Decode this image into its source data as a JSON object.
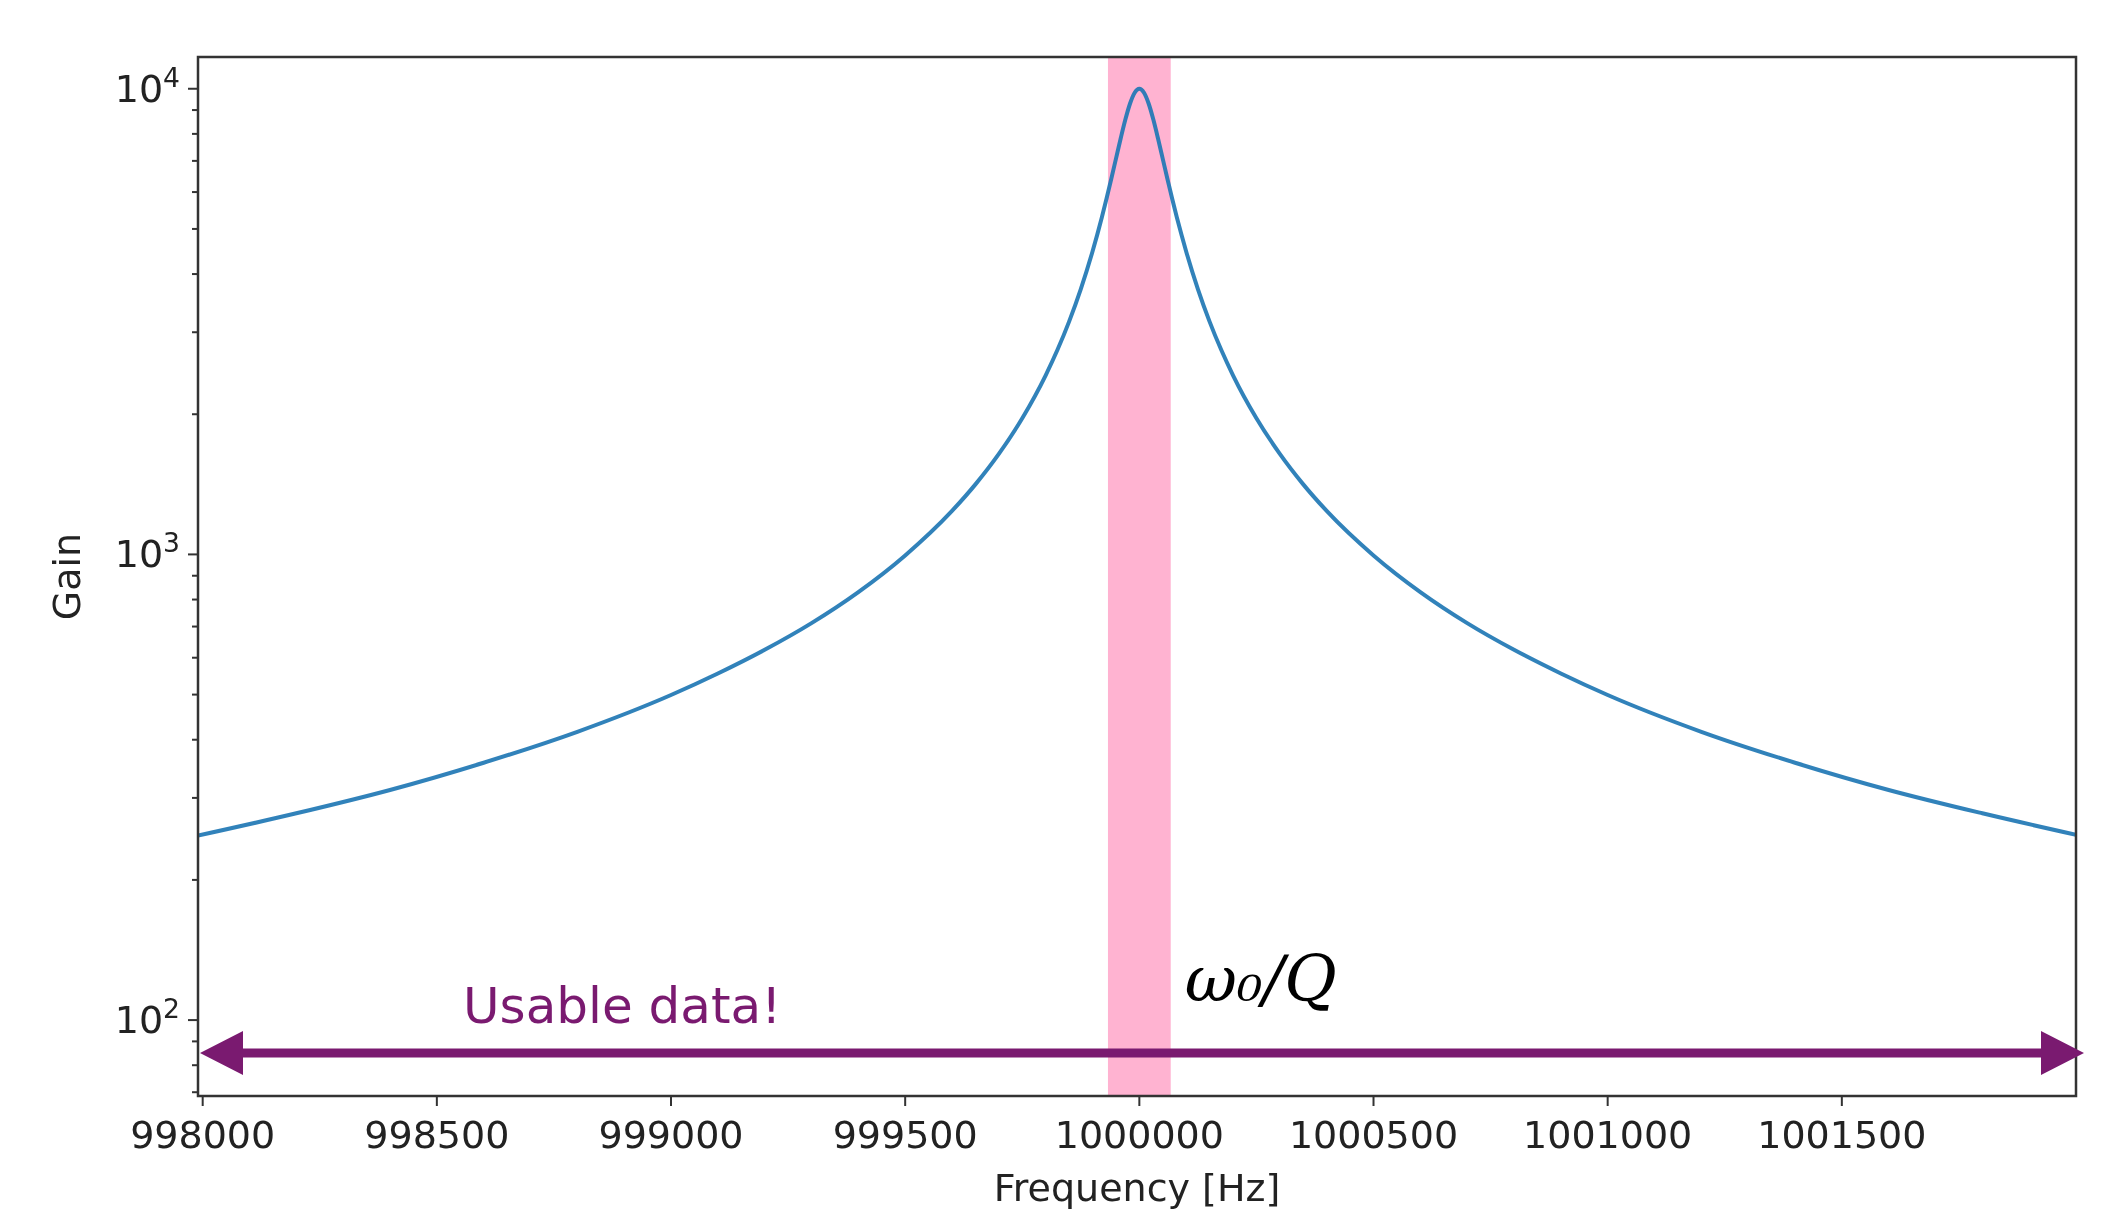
{
  "chart_data": {
    "type": "line",
    "xlabel": "Frequency [Hz]",
    "ylabel": "Gain",
    "log": "y",
    "grid": false,
    "marker": "none",
    "line_style": "solid",
    "xlim": [
      997990,
      1002000
    ],
    "xticks": [
      998000,
      998500,
      999000,
      999500,
      1000000,
      1000500,
      1001000,
      1001500
    ],
    "ylim": [
      68.7,
      11700
    ],
    "yticks": [
      {
        "value": 70,
        "label": null
      },
      {
        "value": 80,
        "label": null
      },
      {
        "value": 90,
        "label": null
      },
      {
        "value": 100,
        "label": "10$^{2}$"
      },
      {
        "value": 200,
        "label": null
      },
      {
        "value": 300,
        "label": null
      },
      {
        "value": 400,
        "label": null
      },
      {
        "value": 500,
        "label": null
      },
      {
        "value": 600,
        "label": null
      },
      {
        "value": 700,
        "label": null
      },
      {
        "value": 800,
        "label": null
      },
      {
        "value": 900,
        "label": null
      },
      {
        "value": 1000,
        "label": "10$^{3}$"
      },
      {
        "value": 2000,
        "label": null
      },
      {
        "value": 3000,
        "label": null
      },
      {
        "value": 4000,
        "label": null
      },
      {
        "value": 5000,
        "label": null
      },
      {
        "value": 6000,
        "label": null
      },
      {
        "value": 7000,
        "label": null
      },
      {
        "value": 8000,
        "label": null
      },
      {
        "value": 9000,
        "label": null
      },
      {
        "value": 10000,
        "label": "10$^{4}$"
      }
    ],
    "series": [
      {
        "color": "#1f77b4",
        "x": [
          997990,
          998200,
          998400,
          998600,
          998800,
          999000,
          999100,
          999200,
          999300,
          999400,
          999500,
          999600,
          999650,
          999700,
          999750,
          999800,
          999825,
          999850,
          999875,
          999900,
          999910,
          999920,
          999930,
          999940,
          999950,
          999960,
          999970,
          999980,
          999990,
          1000000,
          1000010,
          1000020,
          1000030,
          1000040,
          1000050,
          1000060,
          1000070,
          1000080,
          1000090,
          1000100,
          1000125,
          1000150,
          1000175,
          1000200,
          1000250,
          1000300,
          1000350,
          1000400,
          1000500,
          1000600,
          1000700,
          1000800,
          1000900,
          1001000,
          1001200,
          1001400,
          1001600,
          1001800,
          1002000
        ],
        "values": [
          249,
          278,
          312,
          357,
          416,
          499,
          555,
          624,
          712,
          830,
          995,
          1240,
          1414,
          1644,
          1961,
          2425,
          2747,
          3162,
          3714,
          4472,
          4856,
          5300,
          5812,
          6402,
          7071,
          7809,
          8575,
          9285,
          9806,
          10000,
          9806,
          9285,
          8575,
          7809,
          7071,
          6402,
          5812,
          5300,
          4856,
          4472,
          3714,
          3162,
          2747,
          2425,
          1961,
          1644,
          1414,
          1240,
          995,
          830,
          712,
          624,
          555,
          499,
          416,
          357,
          312,
          278,
          250
        ]
      }
    ],
    "bands": [
      {
        "axis": "x",
        "from": 999933,
        "to": 1000067,
        "label": "ω₀/Q",
        "color": "#ffb3d1"
      }
    ],
    "annotations": [
      "Usable data!"
    ]
  }
}
